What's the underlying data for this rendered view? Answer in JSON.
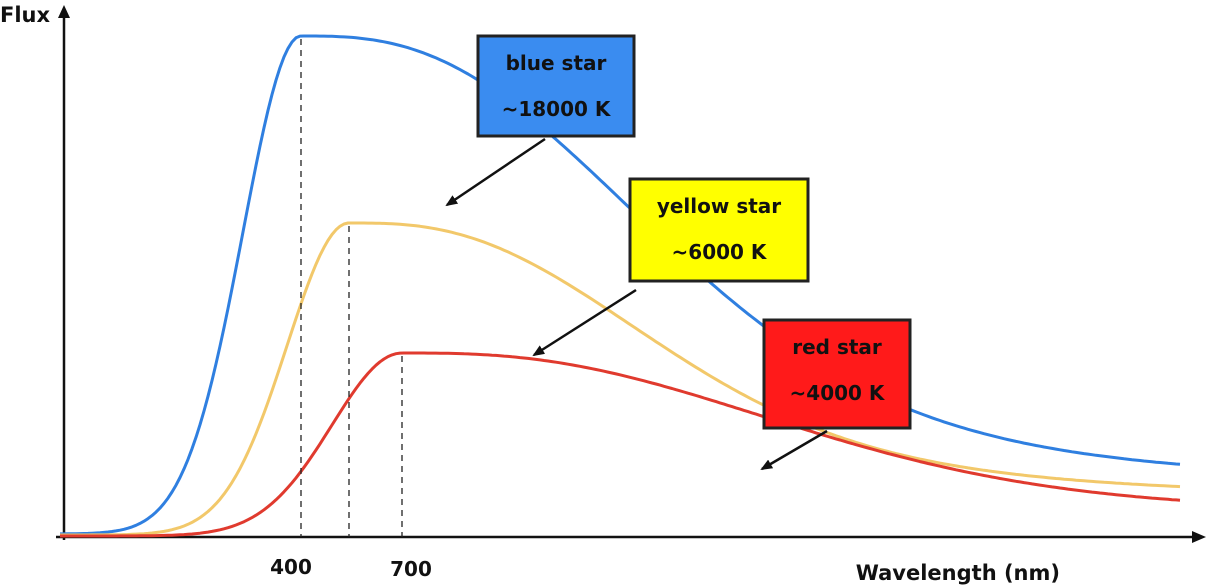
{
  "chart_data": {
    "type": "line",
    "xlabel": "Wavelength (nm)",
    "ylabel": "Flux",
    "x_ticks": [
      400,
      700
    ],
    "grid": false,
    "legend": "none",
    "series": [
      {
        "name": "blue star",
        "temperature_label": "~18000 K",
        "color": "#2f7fe0",
        "box_color": "#3a8cf0"
      },
      {
        "name": "yellow star",
        "temperature_label": "~6000 K",
        "color": "#f2c86a",
        "box_color": "#ffff00"
      },
      {
        "name": "red star",
        "temperature_label": "~4000 K",
        "color": "#e03a2e",
        "box_color": "#ff1a1a"
      }
    ]
  }
}
